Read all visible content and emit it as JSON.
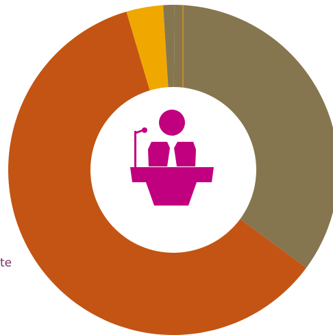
{
  "chart_data": {
    "type": "pie",
    "variant": "donut",
    "title": "",
    "legend": "none",
    "series": [
      {
        "label": "",
        "value": 35,
        "color": "#867650"
      },
      {
        "label": "",
        "value": 60.3,
        "color": "#c35413"
      },
      {
        "label": "",
        "value": 3.6,
        "color": "#f0a800"
      },
      {
        "label": "",
        "value": 1.1,
        "color": "#867650"
      }
    ],
    "center_icon": "speaker-at-podium-icon",
    "center_icon_color": "#c0007f",
    "annotations": [
      {
        "text": "te",
        "color": "#7a2a6a"
      }
    ]
  }
}
